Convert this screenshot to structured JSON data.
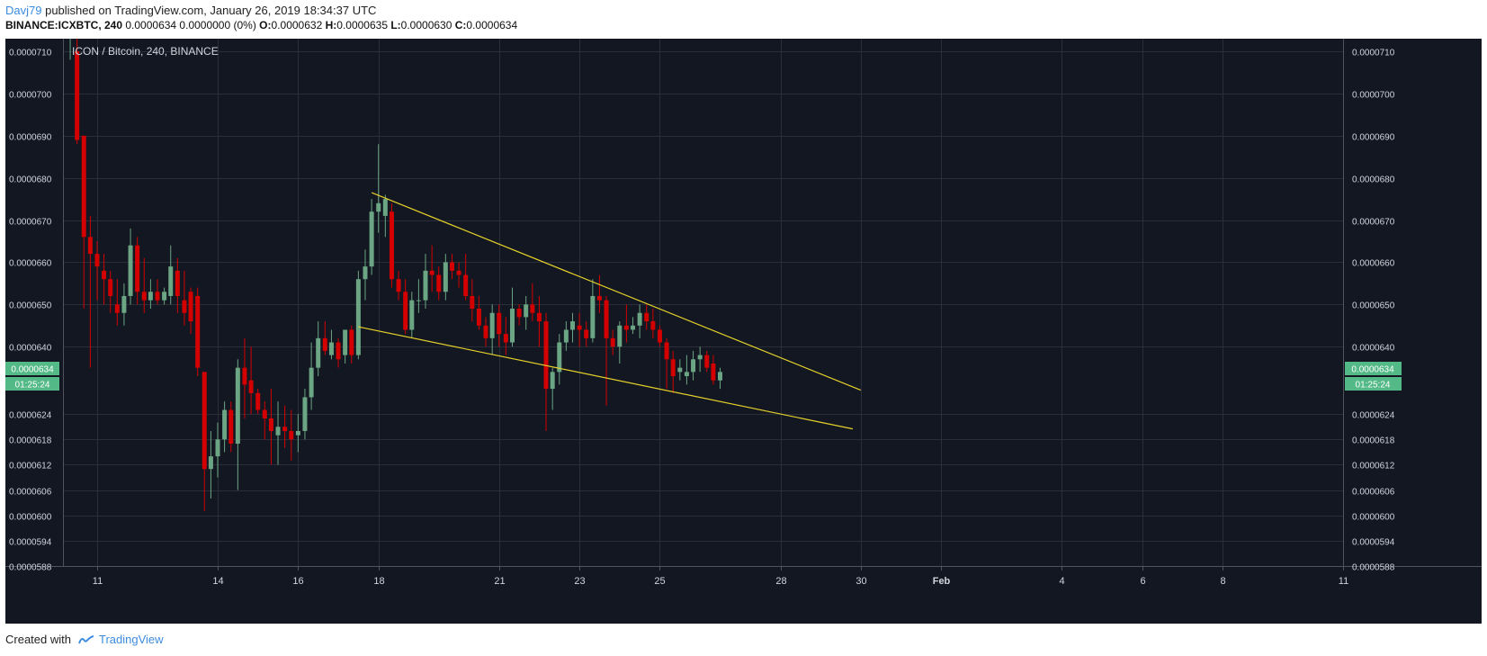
{
  "header": {
    "author": "Davj79",
    "published": "published on TradingView.com, January 26, 2019 18:34:37 UTC",
    "symbol_interval": "BINANCE:ICXBTC, 240",
    "change": "0.0000634 0.0000000 (0%)",
    "o_label": "O:",
    "o_value": "0.0000632",
    "h_label": "H:",
    "h_value": "0.0000635",
    "l_label": "L:",
    "l_value": "0.0000630",
    "c_label": "C:",
    "c_value": "0.0000634"
  },
  "footer": {
    "created_with": "Created with",
    "brand": "TradingView"
  },
  "colors": {
    "background": "#131722",
    "grid": "#2a2e39",
    "up": "#6ba583",
    "down": "#d40000",
    "trendline": "#e6d22a",
    "axis_text": "#d1d4dc",
    "badge": "#53b987"
  },
  "chart_data": {
    "type": "candlestick",
    "title": "ICON / Bitcoin, 240, BINANCE",
    "price_badge": "0.0000634",
    "countdown": "01:25:24",
    "y_tick_labels": [
      "0.0000710",
      "0.0000700",
      "0.0000690",
      "0.0000680",
      "0.0000670",
      "0.0000660",
      "0.0000650",
      "0.0000640",
      "0.0000624",
      "0.0000618",
      "0.0000612",
      "0.0000606",
      "0.0000600",
      "0.0000594",
      "0.0000588"
    ],
    "x_tick_labels": [
      "11",
      "14",
      "16",
      "18",
      "21",
      "23",
      "25",
      "28",
      "30",
      "Feb",
      "4",
      "6",
      "8",
      "11"
    ],
    "x_tick_days": [
      11,
      14,
      16,
      18,
      21,
      23,
      25,
      28,
      30,
      32,
      35,
      37,
      39,
      42
    ],
    "ylim": [
      5.88e-05,
      7.13e-05
    ],
    "xlim": [
      10.15,
      42.0
    ],
    "grid": true,
    "candles": [
      {
        "t": 10.33,
        "o": 7.17e-05,
        "h": 7.25e-05,
        "l": 7.08e-05,
        "c": 7.2e-05
      },
      {
        "t": 10.5,
        "o": 7.1e-05,
        "h": 7.15e-05,
        "l": 6.88e-05,
        "c": 6.89e-05
      },
      {
        "t": 10.67,
        "o": 6.9e-05,
        "h": 6.9e-05,
        "l": 6.49e-05,
        "c": 6.66e-05
      },
      {
        "t": 10.83,
        "o": 6.66e-05,
        "h": 6.71e-05,
        "l": 6.35e-05,
        "c": 6.62e-05
      },
      {
        "t": 11.0,
        "o": 6.62e-05,
        "h": 6.65e-05,
        "l": 6.51e-05,
        "c": 6.59e-05
      },
      {
        "t": 11.17,
        "o": 6.58e-05,
        "h": 6.62e-05,
        "l": 6.5e-05,
        "c": 6.56e-05
      },
      {
        "t": 11.33,
        "o": 6.56e-05,
        "h": 6.58e-05,
        "l": 6.48e-05,
        "c": 6.52e-05
      },
      {
        "t": 11.5,
        "o": 6.5e-05,
        "h": 6.56e-05,
        "l": 6.45e-05,
        "c": 6.48e-05
      },
      {
        "t": 11.67,
        "o": 6.48e-05,
        "h": 6.55e-05,
        "l": 6.45e-05,
        "c": 6.52e-05
      },
      {
        "t": 11.83,
        "o": 6.52e-05,
        "h": 6.68e-05,
        "l": 6.5e-05,
        "c": 6.64e-05
      },
      {
        "t": 12.0,
        "o": 6.64e-05,
        "h": 6.66e-05,
        "l": 6.5e-05,
        "c": 6.53e-05
      },
      {
        "t": 12.17,
        "o": 6.53e-05,
        "h": 6.61e-05,
        "l": 6.48e-05,
        "c": 6.51e-05
      },
      {
        "t": 12.33,
        "o": 6.51e-05,
        "h": 6.56e-05,
        "l": 6.49e-05,
        "c": 6.53e-05
      },
      {
        "t": 12.5,
        "o": 6.53e-05,
        "h": 6.56e-05,
        "l": 6.5e-05,
        "c": 6.51e-05
      },
      {
        "t": 12.67,
        "o": 6.51e-05,
        "h": 6.54e-05,
        "l": 6.5e-05,
        "c": 6.53e-05
      },
      {
        "t": 12.83,
        "o": 6.52e-05,
        "h": 6.64e-05,
        "l": 6.5e-05,
        "c": 6.59e-05
      },
      {
        "t": 13.0,
        "o": 6.58e-05,
        "h": 6.61e-05,
        "l": 6.48e-05,
        "c": 6.52e-05
      },
      {
        "t": 13.17,
        "o": 6.51e-05,
        "h": 6.58e-05,
        "l": 6.45e-05,
        "c": 6.48e-05
      },
      {
        "t": 13.33,
        "o": 6.53e-05,
        "h": 6.54e-05,
        "l": 6.43e-05,
        "c": 6.46e-05
      },
      {
        "t": 13.5,
        "o": 6.52e-05,
        "h": 6.54e-05,
        "l": 6.33e-05,
        "c": 6.35e-05
      },
      {
        "t": 13.67,
        "o": 6.34e-05,
        "h": 6.34e-05,
        "l": 6.01e-05,
        "c": 6.11e-05
      },
      {
        "t": 13.83,
        "o": 6.11e-05,
        "h": 6.2e-05,
        "l": 6.04e-05,
        "c": 6.14e-05
      },
      {
        "t": 14.0,
        "o": 6.14e-05,
        "h": 6.22e-05,
        "l": 6.09e-05,
        "c": 6.18e-05
      },
      {
        "t": 14.17,
        "o": 6.18e-05,
        "h": 6.27e-05,
        "l": 6.15e-05,
        "c": 6.25e-05
      },
      {
        "t": 14.33,
        "o": 6.25e-05,
        "h": 6.27e-05,
        "l": 6.15e-05,
        "c": 6.17e-05
      },
      {
        "t": 14.5,
        "o": 6.17e-05,
        "h": 6.37e-05,
        "l": 6.06e-05,
        "c": 6.35e-05
      },
      {
        "t": 14.67,
        "o": 6.35e-05,
        "h": 6.42e-05,
        "l": 6.23e-05,
        "c": 6.31e-05
      },
      {
        "t": 14.83,
        "o": 6.32e-05,
        "h": 6.4e-05,
        "l": 6.24e-05,
        "c": 6.29e-05
      },
      {
        "t": 15.0,
        "o": 6.29e-05,
        "h": 6.3e-05,
        "l": 6.24e-05,
        "c": 6.25e-05
      },
      {
        "t": 15.17,
        "o": 6.25e-05,
        "h": 6.27e-05,
        "l": 6.18e-05,
        "c": 6.23e-05
      },
      {
        "t": 15.33,
        "o": 6.23e-05,
        "h": 6.3e-05,
        "l": 6.12e-05,
        "c": 6.2e-05
      },
      {
        "t": 15.5,
        "o": 6.19e-05,
        "h": 6.27e-05,
        "l": 6.12e-05,
        "c": 6.21e-05
      },
      {
        "t": 15.67,
        "o": 6.21e-05,
        "h": 6.26e-05,
        "l": 6.16e-05,
        "c": 6.2e-05
      },
      {
        "t": 15.83,
        "o": 6.2e-05,
        "h": 6.25e-05,
        "l": 6.13e-05,
        "c": 6.18e-05
      },
      {
        "t": 16.0,
        "o": 6.19e-05,
        "h": 6.24e-05,
        "l": 6.15e-05,
        "c": 6.2e-05
      },
      {
        "t": 16.17,
        "o": 6.2e-05,
        "h": 6.3e-05,
        "l": 6.18e-05,
        "c": 6.28e-05
      },
      {
        "t": 16.33,
        "o": 6.28e-05,
        "h": 6.41e-05,
        "l": 6.25e-05,
        "c": 6.35e-05
      },
      {
        "t": 16.5,
        "o": 6.35e-05,
        "h": 6.46e-05,
        "l": 6.33e-05,
        "c": 6.42e-05
      },
      {
        "t": 16.67,
        "o": 6.42e-05,
        "h": 6.46e-05,
        "l": 6.38e-05,
        "c": 6.39e-05
      },
      {
        "t": 16.83,
        "o": 6.38e-05,
        "h": 6.44e-05,
        "l": 6.37e-05,
        "c": 6.41e-05
      },
      {
        "t": 17.0,
        "o": 6.41e-05,
        "h": 6.42e-05,
        "l": 6.35e-05,
        "c": 6.37e-05
      },
      {
        "t": 17.17,
        "o": 6.38e-05,
        "h": 6.44e-05,
        "l": 6.36e-05,
        "c": 6.44e-05
      },
      {
        "t": 17.33,
        "o": 6.44e-05,
        "h": 6.45e-05,
        "l": 6.36e-05,
        "c": 6.38e-05
      },
      {
        "t": 17.5,
        "o": 6.38e-05,
        "h": 6.58e-05,
        "l": 6.37e-05,
        "c": 6.56e-05
      },
      {
        "t": 17.67,
        "o": 6.56e-05,
        "h": 6.63e-05,
        "l": 6.51e-05,
        "c": 6.59e-05
      },
      {
        "t": 17.83,
        "o": 6.59e-05,
        "h": 6.75e-05,
        "l": 6.57e-05,
        "c": 6.72e-05
      },
      {
        "t": 18.0,
        "o": 6.72e-05,
        "h": 6.88e-05,
        "l": 6.67e-05,
        "c": 6.74e-05
      },
      {
        "t": 18.17,
        "o": 6.71e-05,
        "h": 6.76e-05,
        "l": 6.66e-05,
        "c": 6.75e-05
      },
      {
        "t": 18.33,
        "o": 6.72e-05,
        "h": 6.74e-05,
        "l": 6.54e-05,
        "c": 6.56e-05
      },
      {
        "t": 18.5,
        "o": 6.56e-05,
        "h": 6.58e-05,
        "l": 6.51e-05,
        "c": 6.53e-05
      },
      {
        "t": 18.67,
        "o": 6.53e-05,
        "h": 6.56e-05,
        "l": 6.43e-05,
        "c": 6.44e-05
      },
      {
        "t": 18.83,
        "o": 6.44e-05,
        "h": 6.53e-05,
        "l": 6.42e-05,
        "c": 6.51e-05
      },
      {
        "t": 19.0,
        "o": 6.51e-05,
        "h": 6.56e-05,
        "l": 6.48e-05,
        "c": 6.51e-05
      },
      {
        "t": 19.17,
        "o": 6.51e-05,
        "h": 6.62e-05,
        "l": 6.49e-05,
        "c": 6.58e-05
      },
      {
        "t": 19.33,
        "o": 6.58e-05,
        "h": 6.64e-05,
        "l": 6.53e-05,
        "c": 6.57e-05
      },
      {
        "t": 19.5,
        "o": 6.57e-05,
        "h": 6.59e-05,
        "l": 6.51e-05,
        "c": 6.53e-05
      },
      {
        "t": 19.67,
        "o": 6.53e-05,
        "h": 6.62e-05,
        "l": 6.51e-05,
        "c": 6.6e-05
      },
      {
        "t": 19.83,
        "o": 6.6e-05,
        "h": 6.62e-05,
        "l": 6.56e-05,
        "c": 6.58e-05
      },
      {
        "t": 20.0,
        "o": 6.58e-05,
        "h": 6.6e-05,
        "l": 6.54e-05,
        "c": 6.57e-05
      },
      {
        "t": 20.17,
        "o": 6.57e-05,
        "h": 6.62e-05,
        "l": 6.51e-05,
        "c": 6.52e-05
      },
      {
        "t": 20.33,
        "o": 6.52e-05,
        "h": 6.56e-05,
        "l": 6.46e-05,
        "c": 6.49e-05
      },
      {
        "t": 20.5,
        "o": 6.49e-05,
        "h": 6.52e-05,
        "l": 6.44e-05,
        "c": 6.45e-05
      },
      {
        "t": 20.67,
        "o": 6.45e-05,
        "h": 6.47e-05,
        "l": 6.4e-05,
        "c": 6.42e-05
      },
      {
        "t": 20.83,
        "o": 6.42e-05,
        "h": 6.5e-05,
        "l": 6.38e-05,
        "c": 6.48e-05
      },
      {
        "t": 21.0,
        "o": 6.48e-05,
        "h": 6.5e-05,
        "l": 6.4e-05,
        "c": 6.43e-05
      },
      {
        "t": 21.17,
        "o": 6.43e-05,
        "h": 6.47e-05,
        "l": 6.38e-05,
        "c": 6.41e-05
      },
      {
        "t": 21.33,
        "o": 6.41e-05,
        "h": 6.54e-05,
        "l": 6.4e-05,
        "c": 6.49e-05
      },
      {
        "t": 21.5,
        "o": 6.49e-05,
        "h": 6.5e-05,
        "l": 6.45e-05,
        "c": 6.47e-05
      },
      {
        "t": 21.67,
        "o": 6.47e-05,
        "h": 6.52e-05,
        "l": 6.44e-05,
        "c": 6.5e-05
      },
      {
        "t": 21.83,
        "o": 6.5e-05,
        "h": 6.55e-05,
        "l": 6.46e-05,
        "c": 6.48e-05
      },
      {
        "t": 22.0,
        "o": 6.48e-05,
        "h": 6.52e-05,
        "l": 6.4e-05,
        "c": 6.46e-05
      },
      {
        "t": 22.17,
        "o": 6.46e-05,
        "h": 6.48e-05,
        "l": 6.2e-05,
        "c": 6.3e-05
      },
      {
        "t": 22.33,
        "o": 6.3e-05,
        "h": 6.35e-05,
        "l": 6.25e-05,
        "c": 6.34e-05
      },
      {
        "t": 22.5,
        "o": 6.34e-05,
        "h": 6.43e-05,
        "l": 6.31e-05,
        "c": 6.41e-05
      },
      {
        "t": 22.67,
        "o": 6.41e-05,
        "h": 6.46e-05,
        "l": 6.39e-05,
        "c": 6.44e-05
      },
      {
        "t": 22.83,
        "o": 6.44e-05,
        "h": 6.48e-05,
        "l": 6.41e-05,
        "c": 6.46e-05
      },
      {
        "t": 23.0,
        "o": 6.45e-05,
        "h": 6.48e-05,
        "l": 6.4e-05,
        "c": 6.44e-05
      },
      {
        "t": 23.17,
        "o": 6.44e-05,
        "h": 6.46e-05,
        "l": 6.4e-05,
        "c": 6.42e-05
      },
      {
        "t": 23.33,
        "o": 6.42e-05,
        "h": 6.56e-05,
        "l": 6.41e-05,
        "c": 6.52e-05
      },
      {
        "t": 23.5,
        "o": 6.52e-05,
        "h": 6.57e-05,
        "l": 6.48e-05,
        "c": 6.51e-05
      },
      {
        "t": 23.67,
        "o": 6.51e-05,
        "h": 6.52e-05,
        "l": 6.26e-05,
        "c": 6.42e-05
      },
      {
        "t": 23.83,
        "o": 6.42e-05,
        "h": 6.44e-05,
        "l": 6.38e-05,
        "c": 6.4e-05
      },
      {
        "t": 24.0,
        "o": 6.4e-05,
        "h": 6.46e-05,
        "l": 6.36e-05,
        "c": 6.45e-05
      },
      {
        "t": 24.17,
        "o": 6.45e-05,
        "h": 6.5e-05,
        "l": 6.41e-05,
        "c": 6.44e-05
      },
      {
        "t": 24.33,
        "o": 6.44e-05,
        "h": 6.47e-05,
        "l": 6.43e-05,
        "c": 6.45e-05
      },
      {
        "t": 24.5,
        "o": 6.45e-05,
        "h": 6.5e-05,
        "l": 6.42e-05,
        "c": 6.48e-05
      },
      {
        "t": 24.67,
        "o": 6.48e-05,
        "h": 6.5e-05,
        "l": 6.44e-05,
        "c": 6.46e-05
      },
      {
        "t": 24.83,
        "o": 6.46e-05,
        "h": 6.49e-05,
        "l": 6.42e-05,
        "c": 6.44e-05
      },
      {
        "t": 25.0,
        "o": 6.44e-05,
        "h": 6.45e-05,
        "l": 6.4e-05,
        "c": 6.41e-05
      },
      {
        "t": 25.17,
        "o": 6.41e-05,
        "h": 6.42e-05,
        "l": 6.3e-05,
        "c": 6.37e-05
      },
      {
        "t": 25.33,
        "o": 6.37e-05,
        "h": 6.39e-05,
        "l": 6.29e-05,
        "c": 6.33e-05
      },
      {
        "t": 25.5,
        "o": 6.34e-05,
        "h": 6.37e-05,
        "l": 6.32e-05,
        "c": 6.35e-05
      },
      {
        "t": 25.67,
        "o": 6.33e-05,
        "h": 6.38e-05,
        "l": 6.31e-05,
        "c": 6.34e-05
      },
      {
        "t": 25.83,
        "o": 6.34e-05,
        "h": 6.39e-05,
        "l": 6.32e-05,
        "c": 6.37e-05
      },
      {
        "t": 26.0,
        "o": 6.37e-05,
        "h": 6.4e-05,
        "l": 6.34e-05,
        "c": 6.38e-05
      },
      {
        "t": 26.17,
        "o": 6.38e-05,
        "h": 6.39e-05,
        "l": 6.34e-05,
        "c": 6.35e-05
      },
      {
        "t": 26.33,
        "o": 6.36e-05,
        "h": 6.38e-05,
        "l": 6.31e-05,
        "c": 6.32e-05
      },
      {
        "t": 26.5,
        "o": 6.32e-05,
        "h": 6.35e-05,
        "l": 6.3e-05,
        "c": 6.34e-05
      }
    ],
    "trendlines": [
      {
        "x1": 17.83,
        "y1": 6.765e-05,
        "x2": 30.0,
        "y2": 6.297e-05
      },
      {
        "x1": 17.5,
        "y1": 6.447e-05,
        "x2": 29.8,
        "y2": 6.205e-05
      }
    ]
  }
}
